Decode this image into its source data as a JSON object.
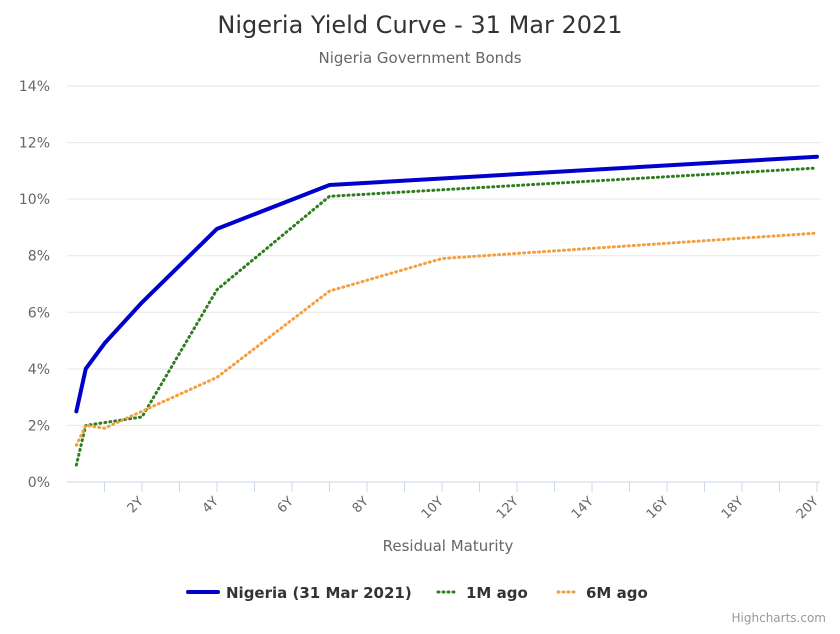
{
  "chart_data": {
    "type": "line",
    "title": "Nigeria Yield Curve - 31 Mar 2021",
    "subtitle": "Nigeria Government Bonds",
    "xlabel": "Residual Maturity",
    "ylabel": "",
    "xlim": [
      0,
      20
    ],
    "ylim": [
      0,
      14
    ],
    "x_ticks": [
      "2Y",
      "4Y",
      "6Y",
      "8Y",
      "10Y",
      "12Y",
      "14Y",
      "16Y",
      "18Y",
      "20Y"
    ],
    "x_tick_values": [
      2,
      4,
      6,
      8,
      10,
      12,
      14,
      16,
      18,
      20
    ],
    "y_ticks": [
      "0%",
      "2%",
      "4%",
      "6%",
      "8%",
      "10%",
      "12%",
      "14%"
    ],
    "y_tick_values": [
      0,
      2,
      4,
      6,
      8,
      10,
      12,
      14
    ],
    "grid": "horizontal",
    "legend_position": "bottom",
    "series": [
      {
        "name": "Nigeria (31 Mar 2021)",
        "color": "#0000cc",
        "style": "solid",
        "x": [
          0.25,
          0.5,
          1,
          2,
          4,
          7,
          20
        ],
        "y": [
          2.5,
          4.0,
          4.9,
          6.35,
          8.95,
          10.5,
          11.5
        ]
      },
      {
        "name": "1M ago",
        "color": "#2e7d1e",
        "style": "dotted",
        "x": [
          0.25,
          0.5,
          2,
          4,
          7,
          20
        ],
        "y": [
          0.6,
          2.0,
          2.3,
          6.8,
          10.1,
          11.1
        ]
      },
      {
        "name": "6M ago",
        "color": "#f0a040",
        "style": "dotted",
        "x": [
          0.25,
          0.5,
          1,
          4,
          7,
          10,
          20
        ],
        "y": [
          1.3,
          2.0,
          1.9,
          3.7,
          6.75,
          7.9,
          8.8
        ]
      }
    ],
    "credits": "Highcharts.com"
  }
}
